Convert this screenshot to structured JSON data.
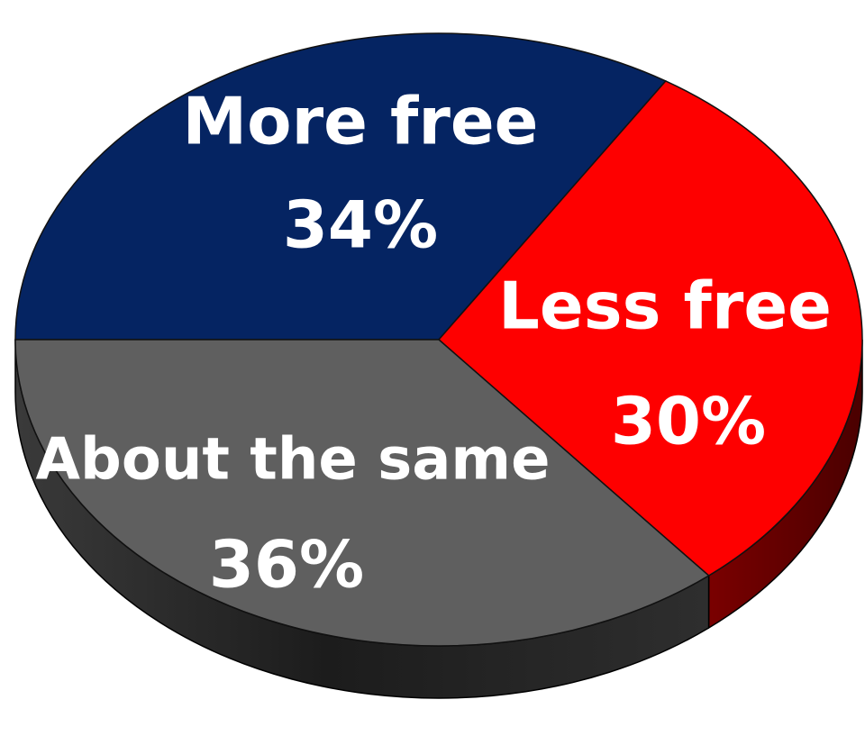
{
  "chart_data": {
    "type": "pie",
    "style": "3d",
    "categories": [
      "More free",
      "Less free",
      "About the same"
    ],
    "values": [
      34,
      30,
      36
    ],
    "value_labels": [
      "34%",
      "30%",
      "36%"
    ],
    "colors": [
      "#052462",
      "#fe0000",
      "#5f5f5f"
    ],
    "side_colors": [
      "#041a48",
      "#650000",
      "#303030"
    ],
    "title": "",
    "legend": "none"
  }
}
